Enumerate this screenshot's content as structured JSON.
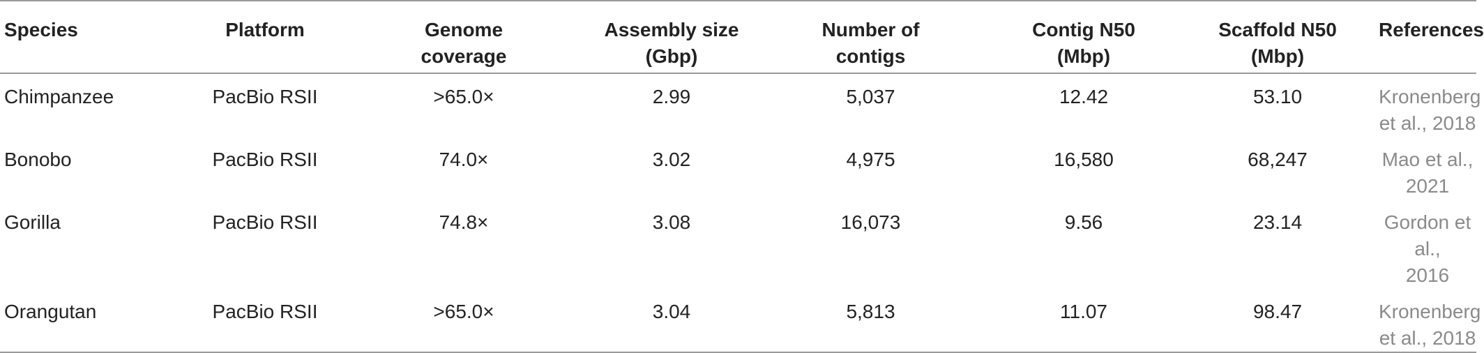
{
  "table": {
    "headers": [
      [
        "Species"
      ],
      [
        "Platform"
      ],
      [
        "Genome",
        "coverage"
      ],
      [
        "Assembly size",
        "(Gbp)"
      ],
      [
        "Number of",
        "contigs"
      ],
      [
        "Contig N50",
        "(Mbp)"
      ],
      [
        "Scaffold N50",
        "(Mbp)"
      ],
      [
        "References"
      ]
    ],
    "rows": [
      {
        "species": "Chimpanzee",
        "platform": "PacBio RSII",
        "coverage": ">65.0×",
        "assembly_size": "2.99",
        "contigs": "5,037",
        "contig_n50": "12.42",
        "scaffold_n50": "53.10",
        "reference": [
          "Kronenberg",
          "et al., 2018"
        ]
      },
      {
        "species": "Bonobo",
        "platform": "PacBio RSII",
        "coverage": "74.0×",
        "assembly_size": "3.02",
        "contigs": "4,975",
        "contig_n50": "16,580",
        "scaffold_n50": "68,247",
        "reference": [
          "Mao et al.,",
          "2021"
        ]
      },
      {
        "species": "Gorilla",
        "platform": "PacBio RSII",
        "coverage": "74.8×",
        "assembly_size": "3.08",
        "contigs": "16,073",
        "contig_n50": "9.56",
        "scaffold_n50": "23.14",
        "reference": [
          "Gordon et al.,",
          "2016"
        ]
      },
      {
        "species": "Orangutan",
        "platform": "PacBio RSII",
        "coverage": ">65.0×",
        "assembly_size": "3.04",
        "contigs": "5,813",
        "contig_n50": "11.07",
        "scaffold_n50": "98.47",
        "reference": [
          "Kronenberg",
          "et al., 2018"
        ]
      }
    ]
  }
}
